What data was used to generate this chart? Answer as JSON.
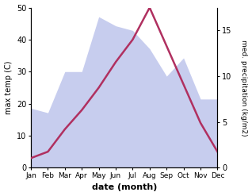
{
  "months": [
    "Jan",
    "Feb",
    "Mar",
    "Apr",
    "May",
    "Jun",
    "Jul",
    "Aug",
    "Sep",
    "Oct",
    "Nov",
    "Dec"
  ],
  "temperature": [
    3,
    5,
    12,
    18,
    25,
    33,
    40,
    50,
    38,
    26,
    14,
    5
  ],
  "precipitation": [
    6.5,
    6.0,
    10.5,
    10.5,
    16.5,
    15.5,
    15.0,
    13.0,
    10.0,
    12.0,
    7.5,
    7.5
  ],
  "temp_color": "#b03060",
  "precip_fill_color": "#b0b8e8",
  "xlabel": "date (month)",
  "ylabel_left": "max temp (C)",
  "ylabel_right": "med. precipitation (kg/m2)",
  "temp_ylim": [
    0,
    50
  ],
  "precip_ylim": [
    0,
    17.5
  ],
  "left_yticks": [
    0,
    10,
    20,
    30,
    40,
    50
  ],
  "right_yticks": [
    0,
    5,
    10,
    15
  ],
  "right_ytick_labels": [
    "0",
    "5",
    "10",
    "15"
  ]
}
